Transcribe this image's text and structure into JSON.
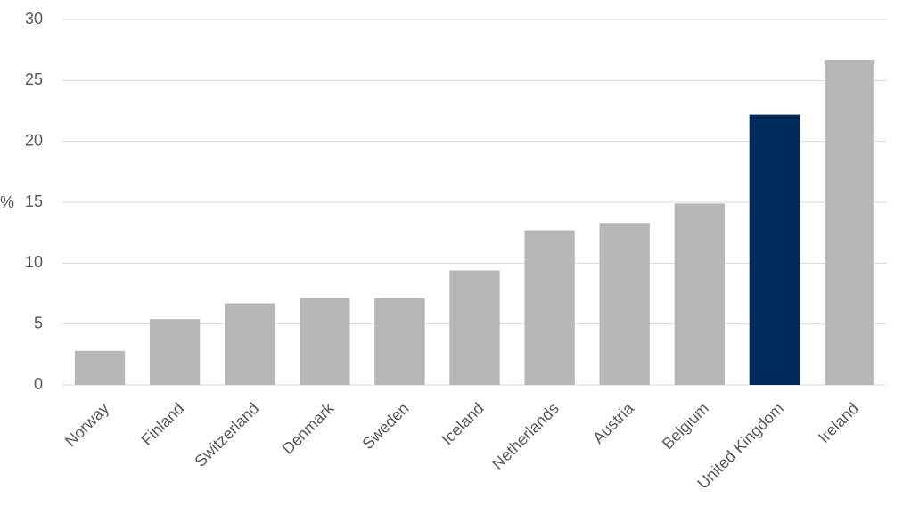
{
  "chart_data": {
    "type": "bar",
    "y_label": "%",
    "categories": [
      "Norway",
      "Finland",
      "Switzerland",
      "Denmark",
      "Sweden",
      "Iceland",
      "Netherlands",
      "Austria",
      "Belgium",
      "United Kingdom",
      "Ireland"
    ],
    "values": [
      2.8,
      5.4,
      6.7,
      7.1,
      7.1,
      9.4,
      12.7,
      13.3,
      14.9,
      22.2,
      26.7
    ],
    "colors": [
      "#b7b7b7",
      "#b7b7b7",
      "#b7b7b7",
      "#b7b7b7",
      "#b7b7b7",
      "#b7b7b7",
      "#b7b7b7",
      "#b7b7b7",
      "#b7b7b7",
      "#002a5c",
      "#b7b7b7"
    ],
    "ylim": [
      0,
      30
    ],
    "yticks": [
      0,
      5,
      10,
      15,
      20,
      25,
      30
    ],
    "grid": true
  }
}
